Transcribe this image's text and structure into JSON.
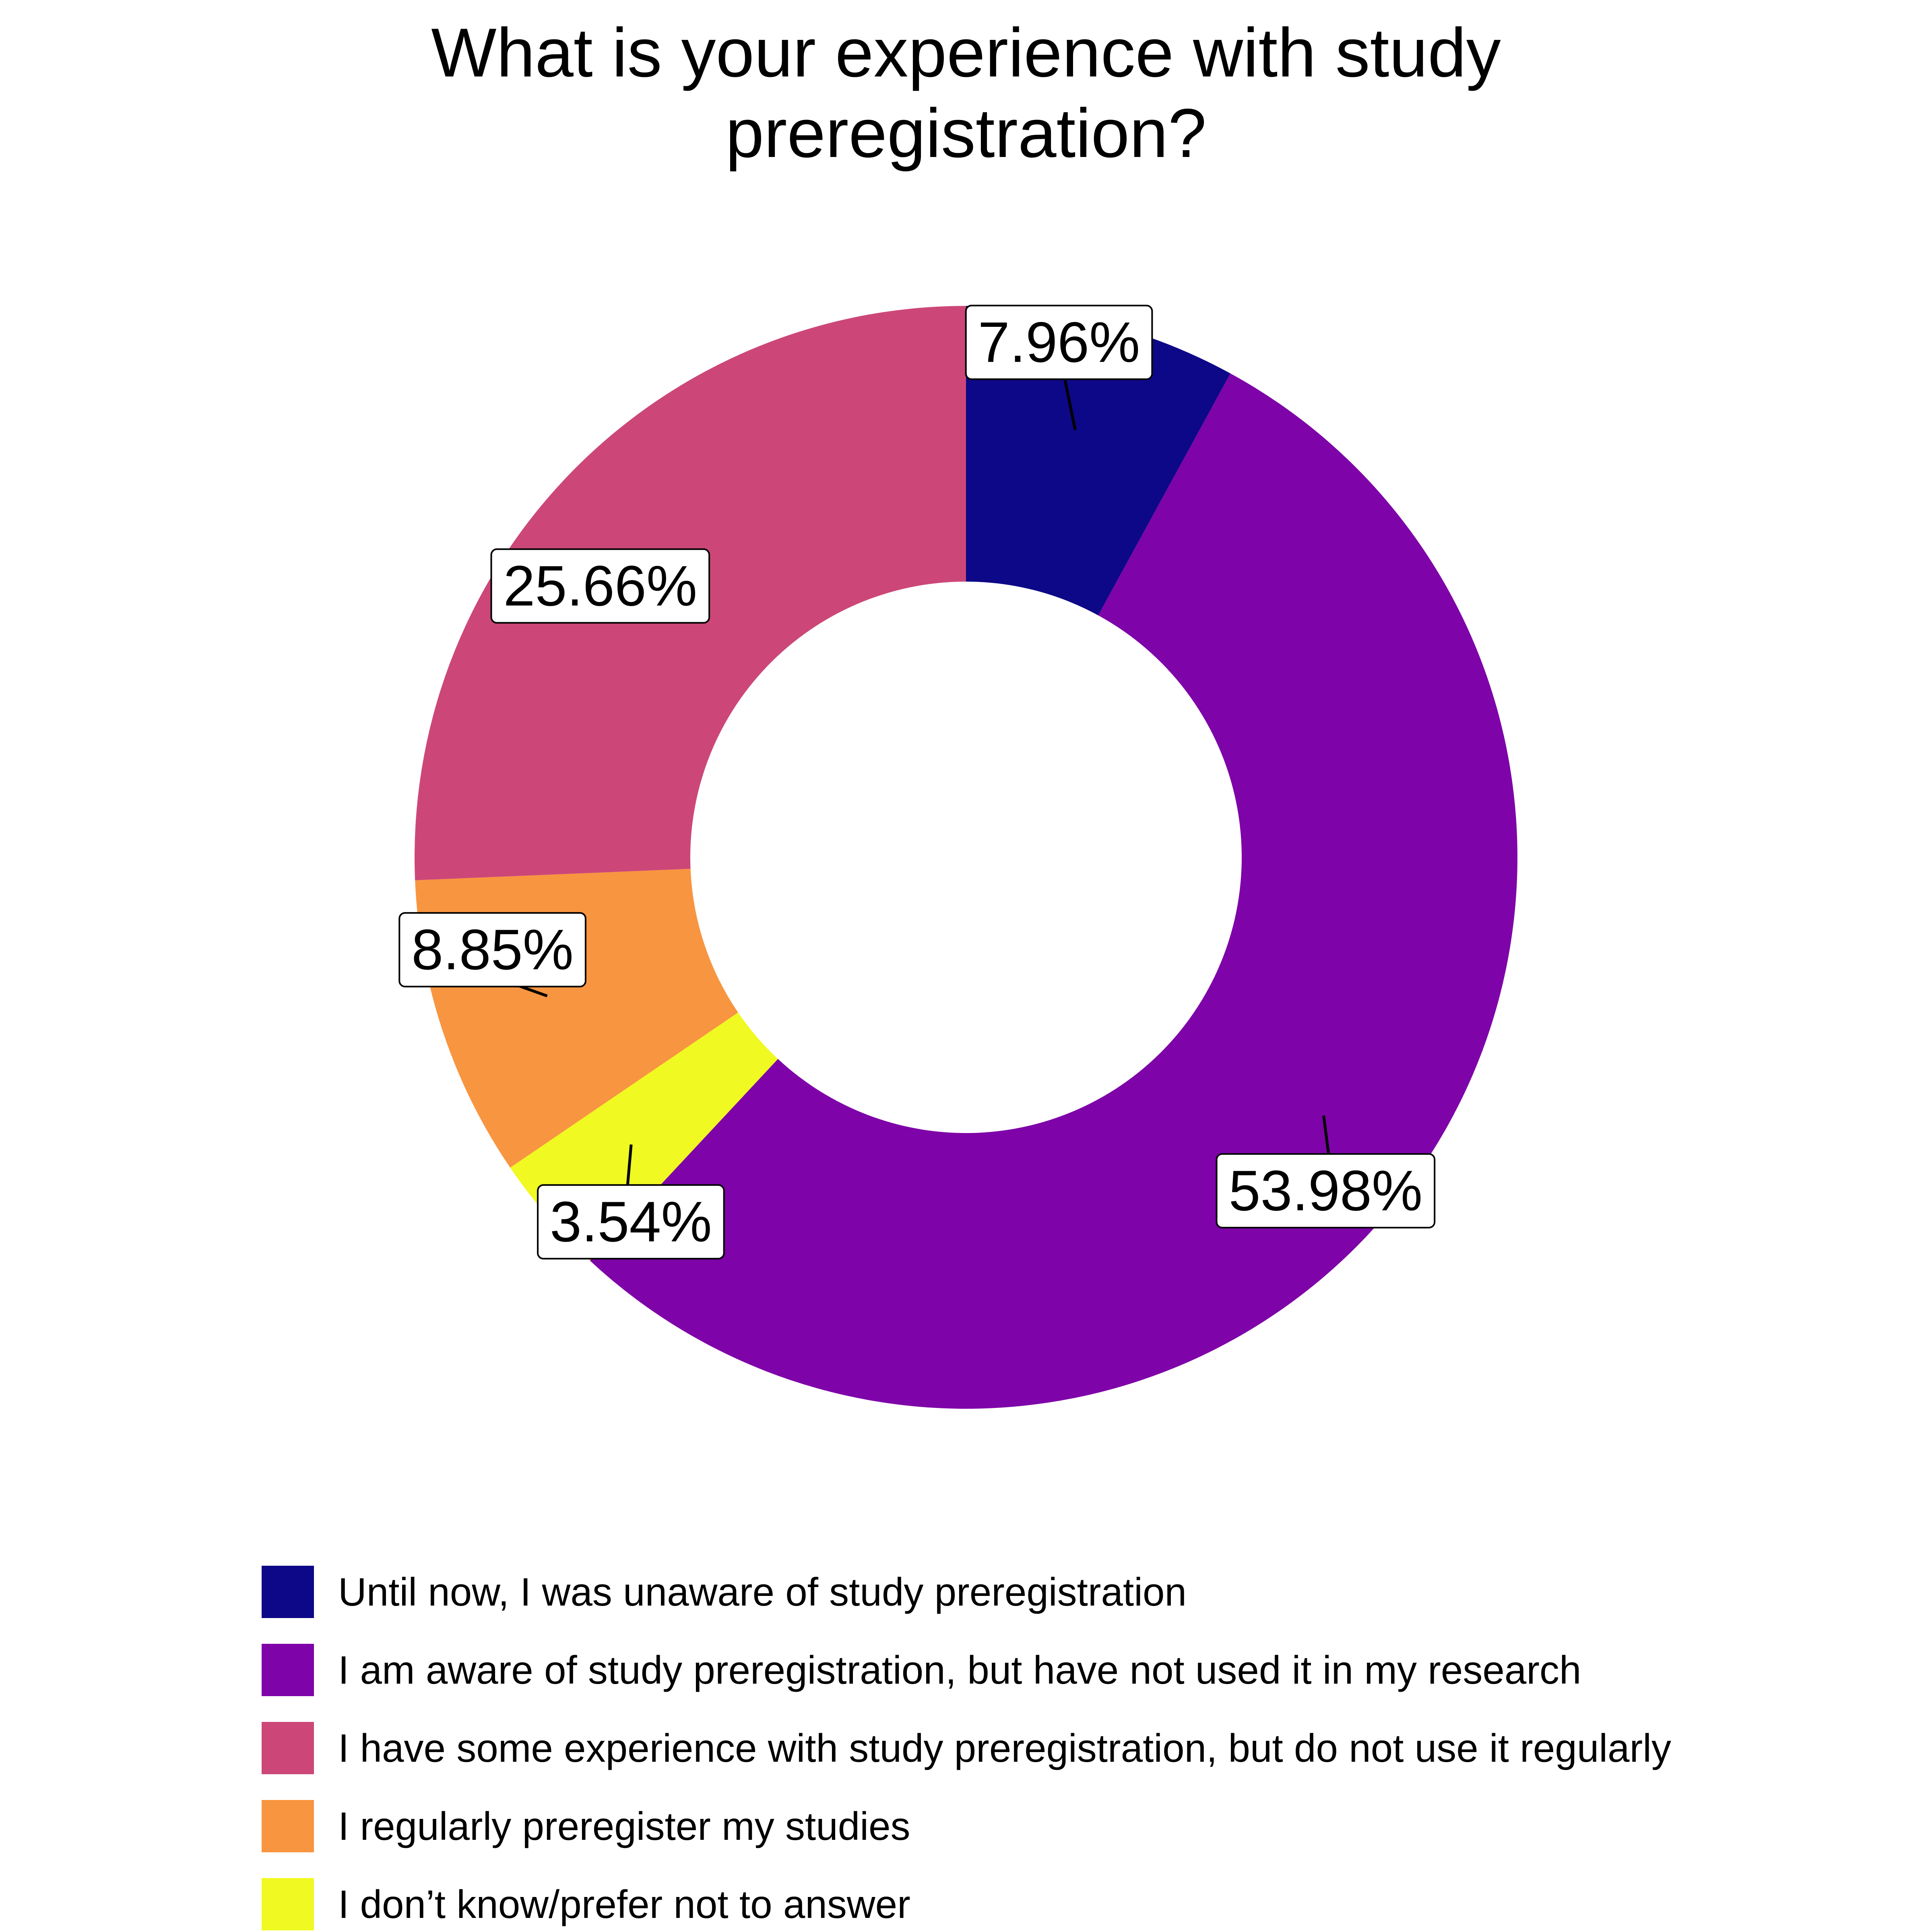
{
  "chart_data": {
    "type": "pie",
    "variant": "donut",
    "title_lines": [
      "What is your experience with study",
      "preregistration?"
    ],
    "slices": [
      {
        "label": "Until now, I was unaware of study preregistration",
        "value": 7.96,
        "value_label": "7.96%",
        "color": "#0d0887"
      },
      {
        "label": "I am aware of study preregistration, but have not used it in my research",
        "value": 53.98,
        "value_label": "53.98%",
        "color": "#7e03a8"
      },
      {
        "label": "I have some experience with study preregistration, but do not use it regularly",
        "value": 25.66,
        "value_label": "25.66%",
        "color": "#cc4778"
      },
      {
        "label": "I regularly preregister my studies",
        "value": 8.85,
        "value_label": "8.85%",
        "color": "#f89540"
      },
      {
        "label": "I don’t know/prefer not to answer",
        "value": 3.54,
        "value_label": "3.54%",
        "color": "#f0f921"
      }
    ],
    "draw_order": [
      0,
      1,
      4,
      3,
      2
    ],
    "direction": "clockwise",
    "start": "top",
    "legend_position": "bottom"
  }
}
